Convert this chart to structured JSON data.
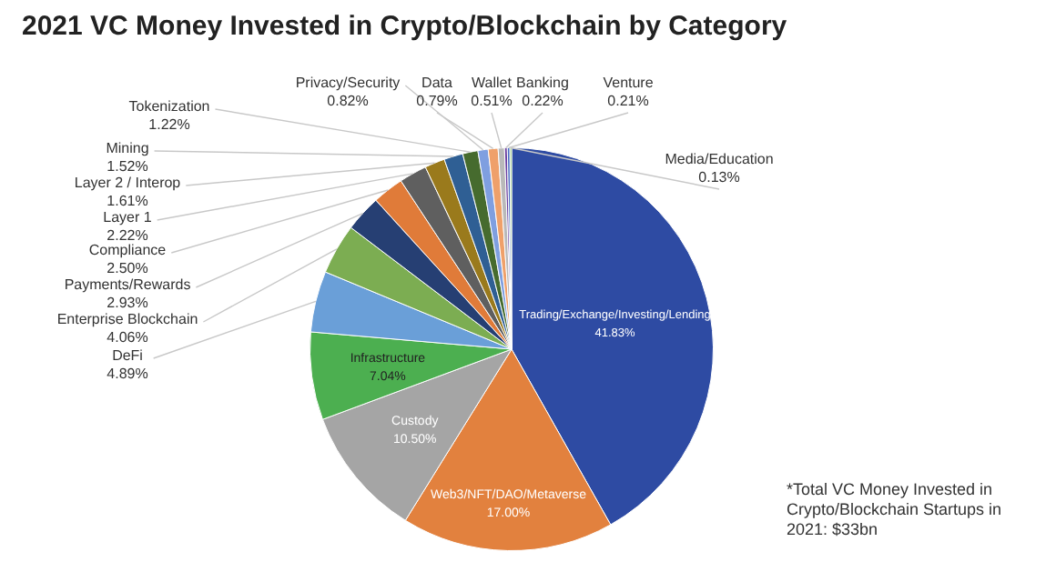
{
  "chart_data": {
    "type": "pie",
    "title": "2021 VC Money Invested in Crypto/Blockchain by Category",
    "categories": [
      "Trading/Exchange/Investing/Lending",
      "Web3/NFT/DAO/Metaverse",
      "Custody",
      "Infrastructure",
      "DeFi",
      "Enterprise Blockchain",
      "Payments/Rewards",
      "Compliance",
      "Layer 1",
      "Layer 2 / Interop",
      "Mining",
      "Tokenization",
      "Privacy/Security",
      "Data",
      "Wallet",
      "Banking",
      "Venture",
      "Media/Education"
    ],
    "values": [
      41.83,
      17.0,
      10.5,
      7.04,
      4.89,
      4.06,
      2.93,
      2.5,
      2.22,
      1.61,
      1.52,
      1.22,
      0.82,
      0.79,
      0.51,
      0.22,
      0.21,
      0.13
    ],
    "value_labels": [
      "41.83%",
      "17.00%",
      "10.50%",
      "7.04%",
      "4.89%",
      "4.06%",
      "2.93%",
      "2.50%",
      "2.22%",
      "1.61%",
      "1.52%",
      "1.22%",
      "0.82%",
      "0.79%",
      "0.51%",
      "0.22%",
      "0.21%",
      "0.13%"
    ],
    "colors": [
      "#2e4ba3",
      "#e2813e",
      "#a5a5a5",
      "#4caf50",
      "#6a9fd8",
      "#7cad52",
      "#263f73",
      "#e07b39",
      "#5f5f5f",
      "#9a7a1c",
      "#2f5f94",
      "#466b2e",
      "#7f9fe0",
      "#efa06a",
      "#b9b9b9",
      "#6b3fa0",
      "#4a6fc4",
      "#6fb04a"
    ],
    "annotations": [
      "*Total VC Money Invested in Crypto/Blockchain Startups in 2021: $33bn"
    ]
  }
}
